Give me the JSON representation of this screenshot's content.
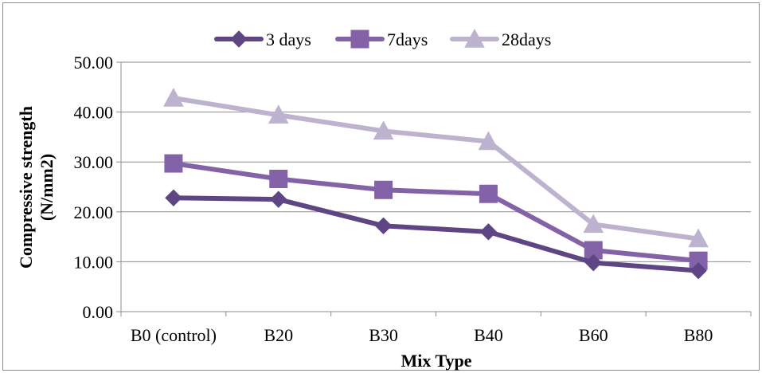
{
  "chart_data": {
    "type": "line",
    "categories": [
      "B0 (control)",
      "B20",
      "B30",
      "B40",
      "B60",
      "B80"
    ],
    "series": [
      {
        "name": "3 days",
        "values": [
          22.8,
          22.5,
          17.2,
          16.0,
          9.8,
          8.2
        ],
        "color": "#5e4584",
        "marker": "diamond"
      },
      {
        "name": "7days",
        "values": [
          29.7,
          26.6,
          24.4,
          23.6,
          12.3,
          10.2
        ],
        "color": "#8462a8",
        "marker": "square"
      },
      {
        "name": "28days",
        "values": [
          42.8,
          39.4,
          36.2,
          34.1,
          17.5,
          14.6
        ],
        "color": "#bdb3cf",
        "marker": "triangle"
      }
    ],
    "xlabel": "Mix Type",
    "ylabel_line1": "Compressive strength",
    "ylabel_line2": "(N/mm2)",
    "ylim": [
      0,
      50
    ],
    "yticks": [
      "0.00",
      "10.00",
      "20.00",
      "30.00",
      "40.00",
      "50.00"
    ],
    "grid": true,
    "legend_position": "top"
  }
}
